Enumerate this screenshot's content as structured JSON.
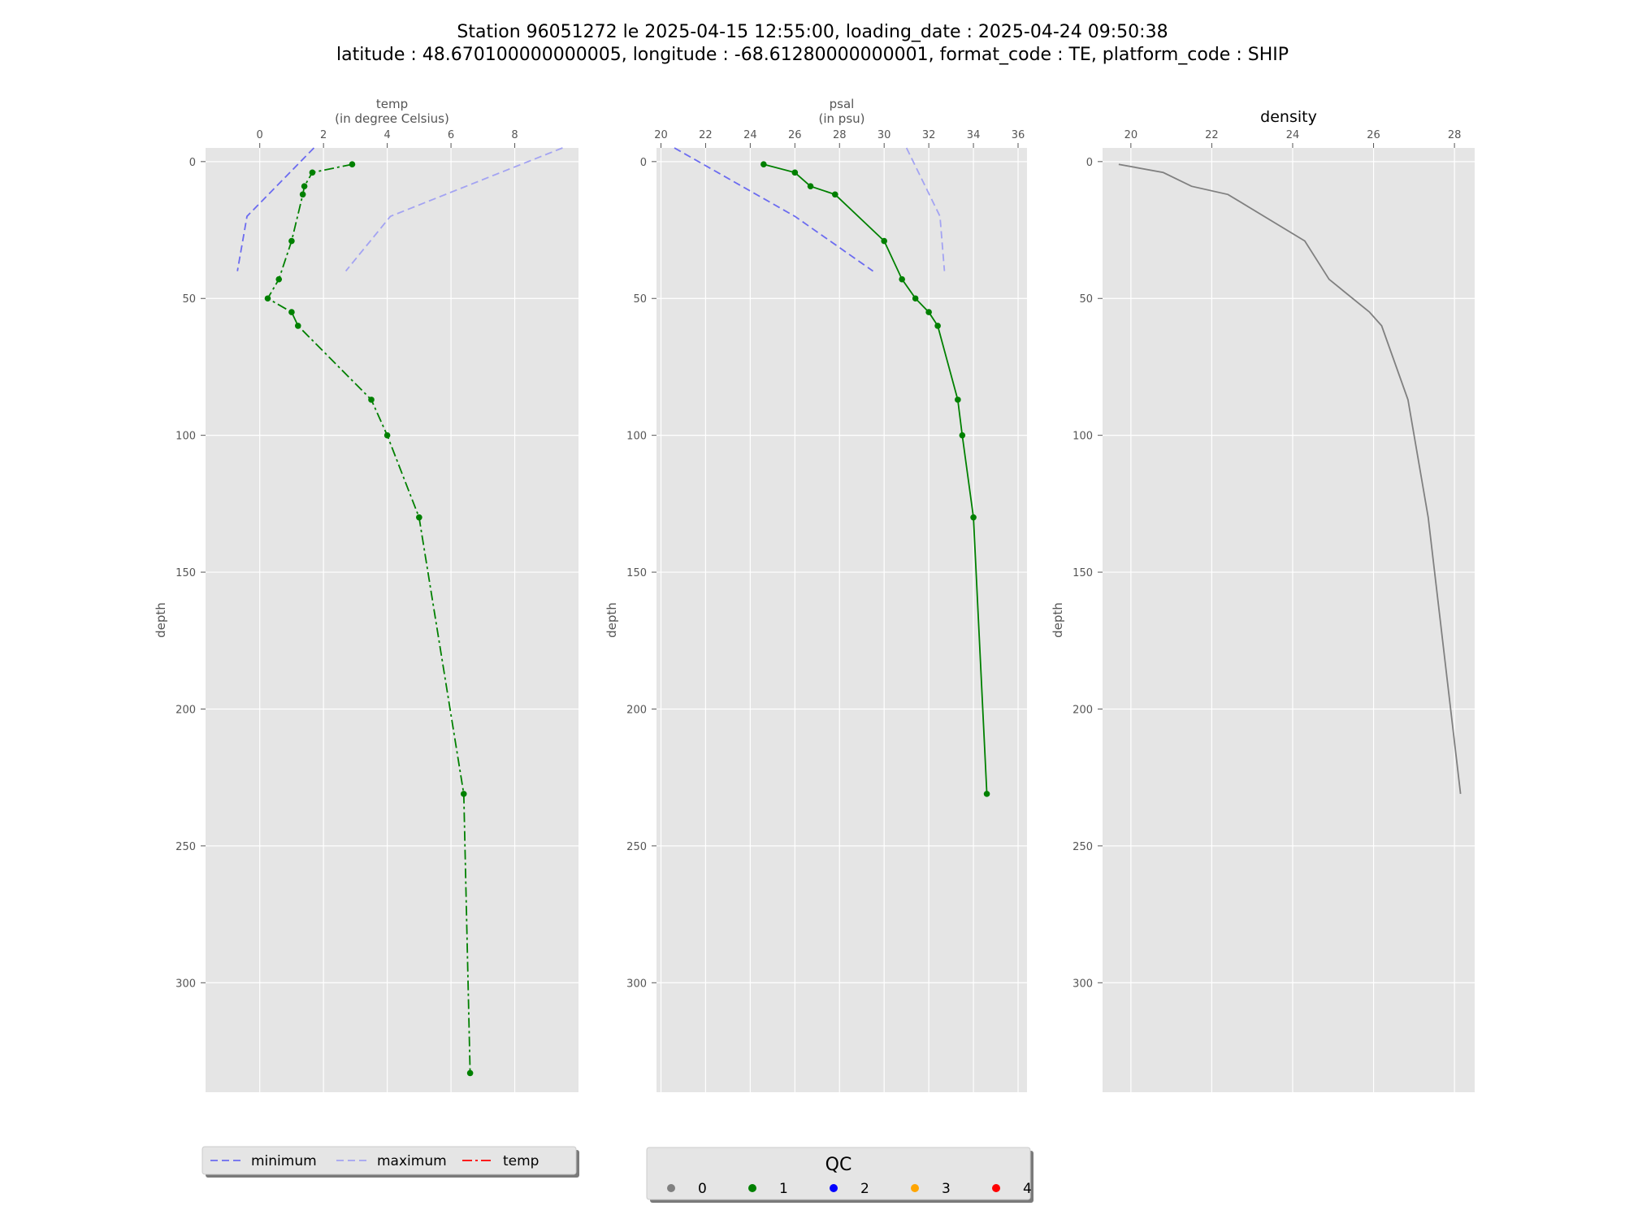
{
  "title": {
    "line1": "Station 96051272 le 2025-04-15 12:55:00, loading_date : 2025-04-24 09:50:38",
    "line2": "latitude : 48.670100000000005, longitude : -68.61280000000001, format_code : TE, platform_code : SHIP"
  },
  "colors": {
    "qc0": "#808080",
    "qc1": "#008000",
    "qc2": "#0000ff",
    "qc3": "#ffa500",
    "qc4": "#ff0000",
    "minimum": "#6b6bf0",
    "maximum": "#a3a3f2",
    "density": "#808080",
    "temp_legend": "#ff0000",
    "panel_bg": "#e5e5e5",
    "grid": "#ffffff"
  },
  "chart_data": [
    {
      "type": "line",
      "panel": "temp",
      "xlabel": "temp",
      "xlabel_unit": "(in degree Celsius)",
      "ylabel": "depth",
      "xlim": [
        -1.7,
        10.0
      ],
      "ylim": [
        340,
        -5
      ],
      "xticks": [
        0,
        2,
        4,
        6,
        8
      ],
      "yticks": [
        0,
        50,
        100,
        150,
        200,
        250,
        300
      ],
      "grid": true,
      "series": [
        {
          "name": "minimum",
          "style": "dashed",
          "x": [
            1.7,
            -0.4,
            -0.7
          ],
          "y": [
            -5,
            20,
            40
          ]
        },
        {
          "name": "maximum",
          "style": "dashed",
          "x": [
            9.5,
            4.1,
            2.7
          ],
          "y": [
            -5,
            20,
            40
          ]
        },
        {
          "name": "temp",
          "style": "dashdot",
          "qc": 1,
          "x": [
            2.9,
            1.65,
            1.4,
            1.35,
            1.0,
            0.6,
            0.25,
            1.0,
            1.2,
            3.5,
            4.0,
            5.0,
            6.4,
            6.6
          ],
          "y": [
            1,
            4,
            9,
            12,
            29,
            43,
            50,
            55,
            60,
            87,
            100,
            130,
            231,
            333
          ]
        }
      ]
    },
    {
      "type": "line",
      "panel": "psal",
      "xlabel": "psal",
      "xlabel_unit": "(in psu)",
      "ylabel": "depth",
      "xlim": [
        19.8,
        36.4
      ],
      "ylim": [
        340,
        -5
      ],
      "xticks": [
        20,
        22,
        24,
        26,
        28,
        30,
        32,
        34,
        36
      ],
      "yticks": [
        0,
        50,
        100,
        150,
        200,
        250,
        300
      ],
      "grid": true,
      "series": [
        {
          "name": "minimum",
          "style": "dashed",
          "x": [
            20.6,
            26.0,
            29.5
          ],
          "y": [
            -5,
            20,
            40
          ]
        },
        {
          "name": "maximum",
          "style": "dashed",
          "x": [
            31.0,
            32.5,
            32.7
          ],
          "y": [
            -5,
            20,
            40
          ]
        },
        {
          "name": "psal",
          "style": "solid",
          "qc": 1,
          "x": [
            24.6,
            26.0,
            26.7,
            27.8,
            30.0,
            30.8,
            31.4,
            32.0,
            32.4,
            33.3,
            33.5,
            34.0,
            34.6
          ],
          "y": [
            1,
            4,
            9,
            12,
            29,
            43,
            50,
            55,
            60,
            87,
            100,
            130,
            231
          ]
        }
      ]
    },
    {
      "type": "line",
      "panel": "density",
      "title": "density",
      "ylabel": "depth",
      "xlim": [
        19.3,
        28.5
      ],
      "ylim": [
        340,
        -5
      ],
      "xticks": [
        20,
        22,
        24,
        26,
        28
      ],
      "yticks": [
        0,
        50,
        100,
        150,
        200,
        250,
        300
      ],
      "grid": true,
      "series": [
        {
          "name": "density",
          "style": "solid",
          "x": [
            19.7,
            20.8,
            21.5,
            22.4,
            24.3,
            24.9,
            25.9,
            26.2,
            26.85,
            27.35,
            28.15
          ],
          "y": [
            1,
            4,
            9,
            12,
            29,
            43,
            55,
            60,
            87,
            130,
            231
          ]
        }
      ]
    }
  ],
  "legend_lines": {
    "items": [
      {
        "label": "minimum",
        "style": "dashed",
        "color_key": "minimum"
      },
      {
        "label": "maximum",
        "style": "dashed",
        "color_key": "maximum"
      },
      {
        "label": "temp",
        "style": "dashdot",
        "color_key": "temp_legend"
      }
    ]
  },
  "legend_qc": {
    "title": "QC",
    "items": [
      {
        "label": "0",
        "color_key": "qc0"
      },
      {
        "label": "1",
        "color_key": "qc1"
      },
      {
        "label": "2",
        "color_key": "qc2"
      },
      {
        "label": "3",
        "color_key": "qc3"
      },
      {
        "label": "4",
        "color_key": "qc4"
      }
    ]
  }
}
